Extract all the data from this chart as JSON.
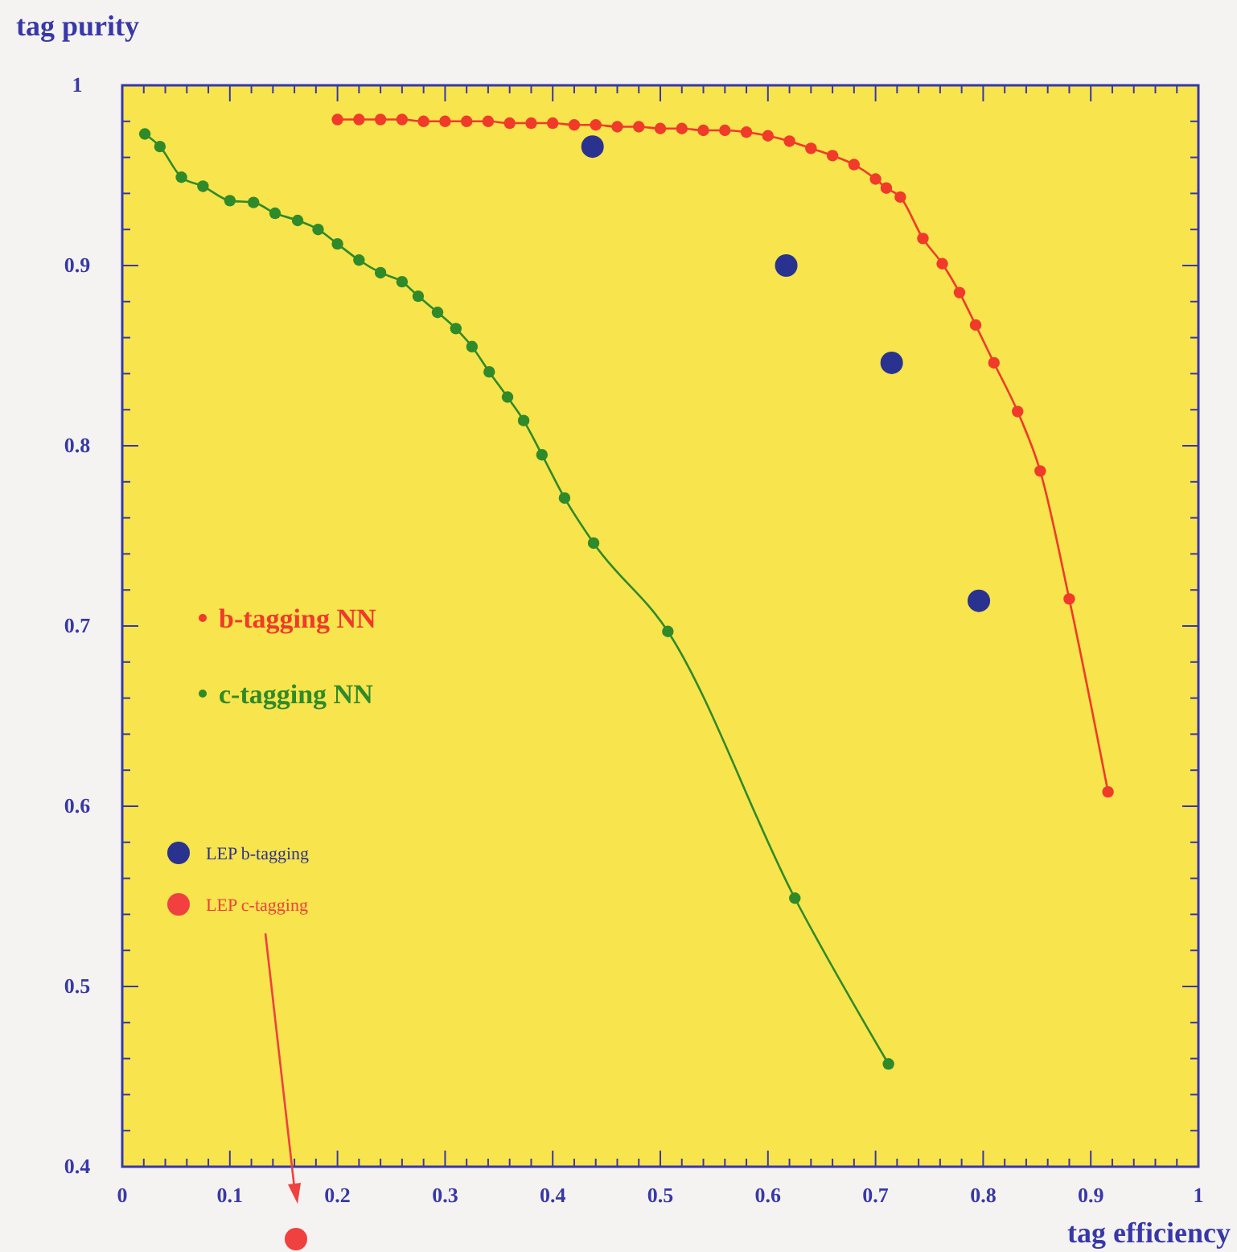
{
  "chart_data": {
    "type": "line",
    "xlabel": "tag efficiency",
    "ylabel": "tag purity",
    "xlim": [
      0,
      1
    ],
    "ylim": [
      0.4,
      1
    ],
    "xticks": [
      0,
      0.1,
      0.2,
      0.3,
      0.4,
      0.5,
      0.6,
      0.7,
      0.8,
      0.9,
      1
    ],
    "yticks": [
      {
        "value": 0.4,
        "label": "0.4"
      },
      {
        "value": 0.5,
        "label": "0.5"
      },
      {
        "value": 0.6,
        "label": "0.6"
      },
      {
        "value": 0.7,
        "label": "0.7"
      },
      {
        "value": 0.8,
        "label": "0.8"
      },
      {
        "value": 0.9,
        "label": "0.9"
      },
      {
        "value": 1,
        "label": "1"
      }
    ],
    "grid": false,
    "legend": "left",
    "marker": "circle",
    "line_style": "solid",
    "series": [
      {
        "name": "b-tagging NN",
        "color": "#f03a2a",
        "x": [
          0.2,
          0.22,
          0.24,
          0.26,
          0.28,
          0.3,
          0.32,
          0.34,
          0.36,
          0.38,
          0.4,
          0.42,
          0.44,
          0.46,
          0.48,
          0.5,
          0.52,
          0.54,
          0.56,
          0.58,
          0.6,
          0.62,
          0.64,
          0.66,
          0.68,
          0.7,
          0.71,
          0.723,
          0.744,
          0.762,
          0.778,
          0.793,
          0.81,
          0.832,
          0.853,
          0.88,
          0.916
        ],
        "values": [
          0.981,
          0.981,
          0.981,
          0.981,
          0.98,
          0.98,
          0.98,
          0.98,
          0.979,
          0.979,
          0.979,
          0.978,
          0.978,
          0.977,
          0.977,
          0.976,
          0.976,
          0.975,
          0.975,
          0.974,
          0.972,
          0.969,
          0.965,
          0.961,
          0.956,
          0.948,
          0.943,
          0.938,
          0.915,
          0.901,
          0.885,
          0.867,
          0.846,
          0.819,
          0.786,
          0.715,
          0.608
        ]
      },
      {
        "name": "c-tagging NN",
        "color": "#2f8a2a",
        "x": [
          0.021,
          0.035,
          0.055,
          0.075,
          0.1,
          0.122,
          0.142,
          0.163,
          0.182,
          0.2,
          0.22,
          0.24,
          0.26,
          0.275,
          0.293,
          0.31,
          0.325,
          0.341,
          0.358,
          0.373,
          0.39,
          0.411,
          0.438,
          0.507,
          0.625,
          0.712
        ],
        "values": [
          0.973,
          0.966,
          0.949,
          0.944,
          0.936,
          0.935,
          0.929,
          0.925,
          0.92,
          0.912,
          0.903,
          0.896,
          0.891,
          0.883,
          0.874,
          0.865,
          0.855,
          0.841,
          0.827,
          0.814,
          0.795,
          0.771,
          0.746,
          0.697,
          0.549,
          0.457
        ]
      },
      {
        "name": "LEP b-tagging",
        "type": "scatter",
        "color": "#2a3290",
        "x": [
          0.437,
          0.617,
          0.715,
          0.796
        ],
        "values": [
          0.966,
          0.9,
          0.846,
          0.714
        ]
      },
      {
        "name": "LEP c-tagging",
        "type": "scatter",
        "color": "#f04040"
      }
    ]
  }
}
